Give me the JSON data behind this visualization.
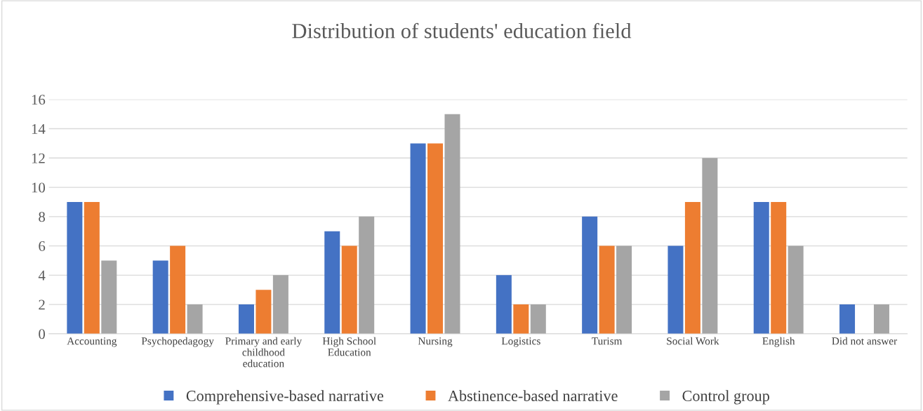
{
  "chart_data": {
    "type": "bar",
    "title": "Distribution of students' education field",
    "categories": [
      "Accounting",
      "Psychopedagogy",
      "Primary and early\nchildhood\neducation",
      "High School\nEducation",
      "Nursing",
      "Logistics",
      "Turism",
      "Social Work",
      "English",
      "Did not answer"
    ],
    "series": [
      {
        "name": "Comprehensive-based narrative",
        "color": "#4472c4",
        "values": [
          9,
          5,
          2,
          7,
          13,
          4,
          8,
          6,
          9,
          2
        ]
      },
      {
        "name": "Abstinence-based narrative",
        "color": "#ed7d31",
        "values": [
          9,
          6,
          3,
          6,
          13,
          2,
          6,
          9,
          9,
          0
        ]
      },
      {
        "name": "Control group",
        "color": "#a5a5a5",
        "values": [
          5,
          2,
          4,
          8,
          15,
          2,
          6,
          12,
          6,
          2
        ]
      }
    ],
    "ylim": [
      0,
      16
    ],
    "yticks": [
      0,
      2,
      4,
      6,
      8,
      10,
      12,
      14,
      16
    ],
    "grid": "y",
    "legend": "bottom"
  }
}
